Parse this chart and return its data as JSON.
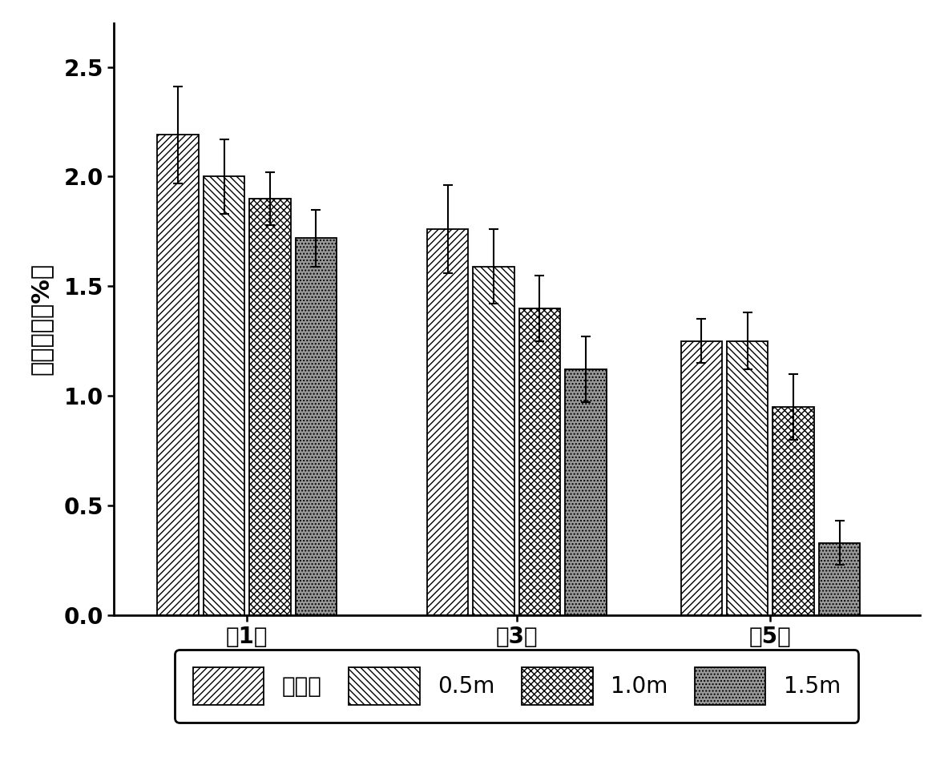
{
  "groups": [
    "第1天",
    "第3天",
    "第5天"
  ],
  "series": [
    "对照组",
    "0.5m",
    "1.0m",
    "1.5m"
  ],
  "values": [
    [
      2.19,
      2.0,
      1.9,
      1.72
    ],
    [
      1.76,
      1.59,
      1.4,
      1.12
    ],
    [
      1.25,
      1.25,
      0.95,
      0.33
    ]
  ],
  "errors": [
    [
      0.22,
      0.17,
      0.12,
      0.13
    ],
    [
      0.2,
      0.17,
      0.15,
      0.15
    ],
    [
      0.1,
      0.13,
      0.15,
      0.1
    ]
  ],
  "ylabel": "可滴定酸（%）",
  "ylim": [
    0.0,
    2.7
  ],
  "yticks": [
    0.0,
    0.5,
    1.0,
    1.5,
    2.0,
    2.5
  ],
  "bar_width": 0.13,
  "background_color": "#ffffff",
  "hatch_patterns": [
    "////",
    "\\\\\\\\",
    "xxxx",
    "...."
  ],
  "edgecolor": "#000000",
  "face_colors": [
    "#ffffff",
    "#ffffff",
    "#ffffff",
    "#999999"
  ]
}
